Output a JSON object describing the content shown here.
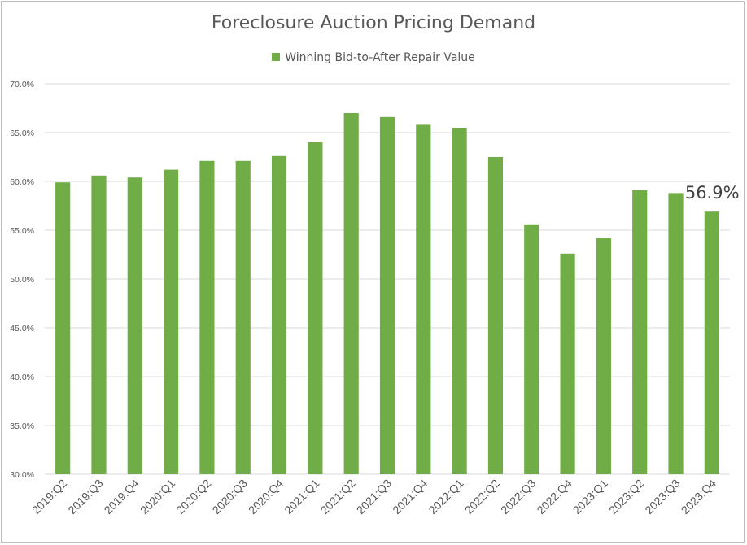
{
  "chart_data": {
    "type": "bar",
    "title": "Foreclosure Auction Pricing Demand",
    "xlabel": "",
    "ylabel": "",
    "ylim": [
      30,
      70
    ],
    "yticks": [
      "30.0%",
      "35.0%",
      "40.0%",
      "45.0%",
      "50.0%",
      "55.0%",
      "60.0%",
      "65.0%",
      "70.0%"
    ],
    "grid": true,
    "legend_position": "top",
    "categories": [
      "2019:Q2",
      "2019:Q3",
      "2019:Q4",
      "2020:Q1",
      "2020:Q2",
      "2020:Q3",
      "2020:Q4",
      "2021:Q1",
      "2021:Q2",
      "2021:Q3",
      "2021:Q4",
      "2022:Q1",
      "2022:Q2",
      "2022:Q3",
      "2022:Q4",
      "2023:Q1",
      "2023:Q2",
      "2023:Q3",
      "2023:Q4"
    ],
    "series": [
      {
        "name": "Winning Bid-to-After Repair Value",
        "color": "#70ad47",
        "values": [
          59.9,
          60.6,
          60.4,
          61.2,
          62.1,
          62.1,
          62.6,
          64.0,
          67.0,
          66.6,
          65.8,
          65.5,
          62.5,
          55.6,
          52.6,
          54.2,
          59.1,
          58.8,
          56.9
        ]
      }
    ],
    "annotations": [
      {
        "category": "2023:Q4",
        "text": "56.9%"
      }
    ]
  }
}
